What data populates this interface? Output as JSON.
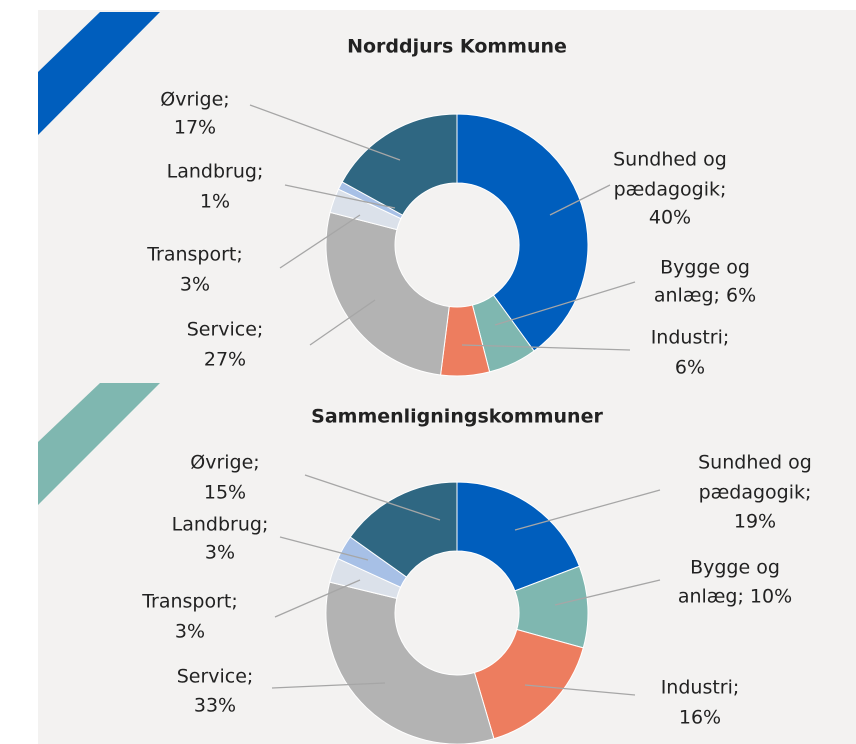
{
  "chart_data": [
    {
      "type": "donut",
      "title": "Norddjurs Kommune",
      "values": [
        40,
        6,
        6,
        27,
        3,
        1,
        17
      ],
      "value_labels": [
        [
          "Sundhed og",
          "pædagogik;",
          "40%"
        ],
        [
          "Bygge og",
          "anlæg; 6%"
        ],
        [
          "Industri;",
          "6%"
        ],
        [
          "Service;",
          "27%"
        ],
        [
          "Transport;",
          "3%"
        ],
        [
          "Landbrug;",
          "1%"
        ],
        [
          "Øvrige;",
          "17%"
        ]
      ],
      "colors": [
        "#005ebd",
        "#7fb7b0",
        "#ed7d5f",
        "#b3b3b3",
        "#dbe1ea",
        "#a7c0e6",
        "#2f6782"
      ]
    },
    {
      "type": "donut",
      "title": "Sammenligningskommuner",
      "values": [
        19,
        10,
        16,
        33,
        3,
        3,
        15
      ],
      "value_labels": [
        [
          "Sundhed og",
          "pædagogik;",
          "19%"
        ],
        [
          "Bygge og",
          "anlæg; 10%"
        ],
        [
          "Industri;",
          "16%"
        ],
        [
          "Service;",
          "33%"
        ],
        [
          "Transport;",
          "3%"
        ],
        [
          "Landbrug;",
          "3%"
        ],
        [
          "Øvrige;",
          "15%"
        ]
      ],
      "colors": [
        "#005ebd",
        "#7fb7b0",
        "#ed7d5f",
        "#b3b3b3",
        "#dbe1ea",
        "#a7c0e6",
        "#2f6782"
      ]
    }
  ]
}
